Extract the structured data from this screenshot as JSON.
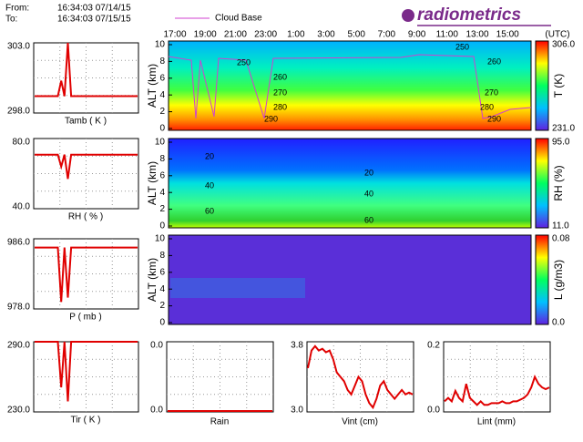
{
  "header": {
    "from_label": "From:",
    "from": "16:34:03 07/14/15",
    "to_label": "To:",
    "to": "16:34:03 07/15/15",
    "legend": "Cloud Base",
    "logo": "radiometrics"
  },
  "time_axis": {
    "labels": [
      "17:00",
      "19:00",
      "21:00",
      "23:00",
      "1:00",
      "3:00",
      "5:00",
      "7:00",
      "9:00",
      "11:00",
      "13:00",
      "15:00"
    ],
    "unit": "(UTC)"
  },
  "profiles": [
    {
      "axis_label": "ALT (km)",
      "yticks": [
        "0",
        "2",
        "4",
        "6",
        "8",
        "10"
      ],
      "colorbar": {
        "max": "306.0",
        "min": "231.0",
        "label": "T (K)"
      },
      "contours": [
        "250",
        "260",
        "270",
        "280",
        "290",
        "250",
        "260",
        "270",
        "280",
        "290"
      ]
    },
    {
      "axis_label": "ALT (km)",
      "yticks": [
        "0",
        "2",
        "4",
        "6",
        "8",
        "10"
      ],
      "colorbar": {
        "max": "95.0",
        "min": "11.0",
        "label": "RH (%)"
      },
      "contours": [
        "20",
        "40",
        "60",
        "20",
        "40",
        "60"
      ]
    },
    {
      "axis_label": "ALT (km)",
      "yticks": [
        "0",
        "2",
        "4",
        "6",
        "8",
        "10"
      ],
      "colorbar": {
        "max": "0.08",
        "min": "0.0",
        "label": "L (g/m3)"
      },
      "contours": []
    }
  ],
  "side_panels": [
    {
      "label": "Tamb ( K )",
      "max": "303.0",
      "min": "298.0",
      "values": [
        299.2,
        299.2,
        299.2,
        299.2,
        299.2,
        299.2,
        299.2,
        299.2,
        300.3,
        299.2,
        303.0,
        299.2,
        299.2,
        299.2,
        299.2,
        299.2,
        299.2,
        299.2,
        299.2,
        299.2,
        299.2,
        299.2,
        299.2,
        299.2,
        299.2,
        299.2,
        299.2,
        299.2,
        299.2,
        299.2,
        299.2,
        299.2
      ]
    },
    {
      "label": "RH ( % )",
      "max": "80.0",
      "min": "40.0",
      "values": [
        70.8,
        70.8,
        70.8,
        70.8,
        70.8,
        70.8,
        70.8,
        70.8,
        64,
        70.8,
        57,
        70.8,
        70.8,
        70.8,
        70.8,
        70.8,
        70.8,
        70.8,
        70.8,
        70.8,
        70.8,
        70.8,
        70.8,
        70.8,
        70.8,
        70.8,
        70.8,
        70.8,
        70.8,
        70.8,
        70.8,
        70.8
      ]
    },
    {
      "label": "P ( mb )",
      "max": "986.0",
      "min": "978.0",
      "values": [
        985,
        985,
        985,
        985,
        985,
        985,
        985,
        985,
        978.8,
        985,
        979.3,
        985,
        985,
        985,
        985,
        985,
        985,
        985,
        985,
        985,
        985,
        985,
        985,
        985,
        985,
        985,
        985,
        985,
        985,
        985,
        985,
        985
      ]
    },
    {
      "label": "Tir ( K )",
      "max": "290.0",
      "min": "230.0",
      "values": [
        290,
        290,
        290,
        290,
        290,
        290,
        290,
        290,
        251,
        290,
        239,
        290,
        290,
        290,
        290,
        290,
        290,
        290,
        290,
        290,
        290,
        290,
        290,
        290,
        290,
        290,
        290,
        290,
        290,
        290,
        290,
        290
      ]
    }
  ],
  "bottom_panels": [
    {
      "label": "Rain",
      "max": "0.0",
      "min": "0.0",
      "values": [
        0,
        0,
        0,
        0,
        0,
        0,
        0,
        0
      ]
    },
    {
      "label": "Vint (cm)",
      "max": "3.8",
      "min": "3.0",
      "values": [
        3.5,
        3.7,
        3.75,
        3.7,
        3.72,
        3.68,
        3.7,
        3.6,
        3.45,
        3.4,
        3.35,
        3.25,
        3.2,
        3.3,
        3.4,
        3.35,
        3.2,
        3.1,
        3.05,
        3.15,
        3.3,
        3.35,
        3.25,
        3.2,
        3.15,
        3.2,
        3.25,
        3.2,
        3.22,
        3.2
      ]
    },
    {
      "label": "Lint (mm)",
      "max": "0.2",
      "min": "0.0",
      "values": [
        0.03,
        0.04,
        0.03,
        0.06,
        0.04,
        0.03,
        0.08,
        0.04,
        0.03,
        0.02,
        0.03,
        0.02,
        0.02,
        0.025,
        0.025,
        0.025,
        0.03,
        0.025,
        0.025,
        0.03,
        0.03,
        0.035,
        0.04,
        0.05,
        0.07,
        0.1,
        0.08,
        0.07,
        0.065,
        0.07
      ]
    }
  ]
}
